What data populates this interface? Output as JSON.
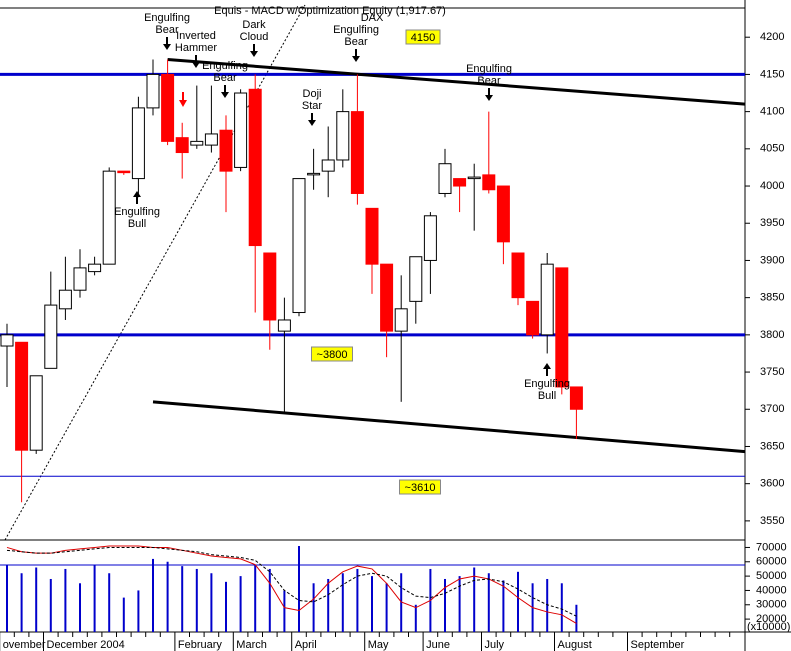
{
  "chart_data": {
    "type": "candlestick",
    "title": "Equis - MACD w/Optimization Equity (1,917.67)",
    "subtitle": "DAX",
    "categories": [
      "ovember",
      null,
      null,
      "December 2004",
      null,
      null,
      null,
      null,
      null,
      null,
      null,
      null,
      "February",
      null,
      null,
      null,
      "March",
      null,
      null,
      null,
      "April",
      null,
      null,
      null,
      null,
      "May",
      null,
      null,
      null,
      "June",
      null,
      null,
      null,
      "July",
      null,
      null,
      null,
      null,
      "August",
      null,
      null,
      null,
      null,
      "September",
      null,
      null,
      null,
      null,
      null,
      null,
      null
    ],
    "open": [
      3785,
      3790,
      3645,
      3755,
      3835,
      3860,
      3885,
      3895,
      4020,
      4010,
      4105,
      4150,
      4065,
      4055,
      4055,
      4075,
      4025,
      4130,
      3910,
      3805,
      3830,
      4015,
      4020,
      4035,
      4100,
      3970,
      3895,
      3805,
      3845,
      3900,
      3990,
      4010,
      4010,
      4015,
      4000,
      3910,
      3845,
      3800,
      3890,
      3730,
      null,
      null,
      null,
      null,
      null,
      null,
      null,
      null,
      null,
      null,
      null
    ],
    "high": [
      3815,
      3790,
      3745,
      3885,
      3905,
      3915,
      3905,
      4025,
      4020,
      4120,
      4170,
      4170,
      4085,
      4135,
      4135,
      4095,
      4130,
      4150,
      3910,
      3850,
      4010,
      4050,
      4080,
      4130,
      4150,
      3970,
      3895,
      3880,
      3905,
      3965,
      4050,
      4010,
      4030,
      4100,
      4000,
      3910,
      3845,
      3910,
      3890,
      3730,
      null,
      null,
      null,
      null,
      null,
      null,
      null,
      null,
      null,
      null,
      null
    ],
    "low": [
      3730,
      3575,
      3640,
      3755,
      3820,
      3850,
      3880,
      3895,
      4015,
      3985,
      4095,
      4055,
      4010,
      4050,
      4045,
      3965,
      4020,
      3830,
      3780,
      3695,
      3825,
      3995,
      3985,
      4025,
      3975,
      3855,
      3770,
      3710,
      3815,
      3855,
      3985,
      3965,
      3940,
      3990,
      3895,
      3840,
      3795,
      3775,
      3720,
      3660,
      null,
      null,
      null,
      null,
      null,
      null,
      null,
      null,
      null,
      null,
      null
    ],
    "close": [
      3800,
      3645,
      3745,
      3840,
      3860,
      3890,
      3895,
      4020,
      4018,
      4105,
      4150,
      4060,
      4045,
      4060,
      4070,
      4020,
      4125,
      3920,
      3820,
      3820,
      4010,
      4017,
      4035,
      4100,
      3990,
      3895,
      3805,
      3835,
      3905,
      3960,
      4030,
      4000,
      4012,
      3995,
      3925,
      3850,
      3800,
      3895,
      3730,
      3700,
      null,
      null,
      null,
      null,
      null,
      null,
      null,
      null,
      null,
      null,
      null
    ],
    "up_color": "#ffffff",
    "down_color": "#ff0000",
    "ylim": [
      3527,
      4250
    ],
    "yticks": [
      3550,
      3600,
      3650,
      3700,
      3750,
      3800,
      3850,
      3900,
      3950,
      4000,
      4050,
      4100,
      4150,
      4200
    ],
    "levels": [
      {
        "value": 4150,
        "label": "4150",
        "color": "#0000cc"
      },
      {
        "value": 3800,
        "label": "~3800",
        "color": "#0000cc"
      },
      {
        "value": 3610,
        "label": "~3610",
        "color": "#0000cc"
      }
    ],
    "trendlines": [
      {
        "values": [
          4170,
          4110
        ],
        "color": "#000000"
      },
      {
        "values": [
          3710,
          3643
        ],
        "color": "#000000"
      }
    ],
    "annotations": [
      [
        "Engulfing",
        "Bear"
      ],
      [
        "Inverted",
        "Hammer"
      ],
      [
        "Engulfing",
        "Bear"
      ],
      [
        "Dark",
        "Cloud"
      ],
      [
        "Engulfing",
        "Bull"
      ],
      [
        "Doji",
        "Star"
      ],
      [
        "Engulfing",
        "Bear"
      ],
      [
        "Engulfing",
        "Bear"
      ],
      [
        "Engulfing",
        "Bull"
      ]
    ],
    "indicator": {
      "ylim": [
        11000,
        74500
      ],
      "yticks": [
        20000,
        30000,
        40000,
        50000,
        60000,
        70000
      ],
      "axis_note": "(x10000)",
      "bars": {
        "color": "#0000cc",
        "values": [
          58000,
          52000,
          56000,
          48000,
          55000,
          45000,
          58000,
          52000,
          35000,
          40000,
          62000,
          60000,
          57000,
          55000,
          52000,
          46000,
          50000,
          58000,
          55000,
          40000,
          71000,
          45000,
          48000,
          52000,
          55000,
          50000,
          45000,
          52000,
          30000,
          55000,
          48000,
          50000,
          56000,
          52000,
          47000,
          53000,
          45000,
          48000,
          45000,
          30000,
          null,
          null,
          null,
          null,
          null,
          null,
          null,
          null,
          null,
          null,
          null
        ]
      },
      "lines": [
        {
          "color": "#dd0000",
          "dashed": false,
          "values": [
            70000,
            67000,
            66000,
            66000,
            68000,
            69000,
            70000,
            71000,
            71000,
            71000,
            70000,
            70000,
            68000,
            66000,
            64000,
            63000,
            62000,
            58000,
            45000,
            28000,
            26000,
            34000,
            45000,
            53000,
            57000,
            55000,
            45000,
            32000,
            28000,
            33000,
            42000,
            48000,
            50000,
            48000,
            43000,
            35000,
            28000,
            25000,
            23000,
            17000,
            null,
            null,
            null,
            null,
            null,
            null,
            null,
            null,
            null,
            null,
            null
          ]
        },
        {
          "color": "#000000",
          "dashed": true,
          "values": [
            68000,
            67000,
            66000,
            66000,
            67000,
            68000,
            69000,
            70000,
            70000,
            70000,
            70000,
            69000,
            68000,
            67000,
            65000,
            64000,
            63000,
            61000,
            53000,
            40000,
            33000,
            32000,
            37000,
            44000,
            50000,
            52000,
            50000,
            42000,
            36000,
            35000,
            38000,
            43000,
            47000,
            48000,
            46000,
            41000,
            35000,
            30000,
            27000,
            22000,
            null,
            null,
            null,
            null,
            null,
            null,
            null,
            null,
            null,
            null,
            null
          ]
        }
      ]
    }
  }
}
